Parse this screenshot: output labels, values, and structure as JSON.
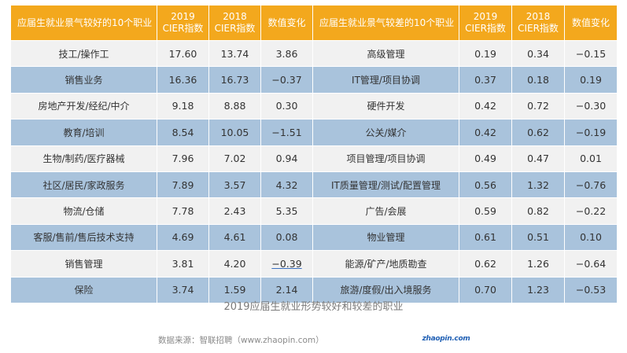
{
  "headers": {
    "good_title": "应届生就业景气较好的10个职业",
    "bad_title": "应届生就业景气较差的10个职业",
    "cier2019_year": "2019",
    "cier2019_label": "CIER指数",
    "cier2018_year": "2018",
    "cier2018_label": "CIER指数",
    "change": "数值变化"
  },
  "rows": [
    {
      "g_name": "技工/操作工",
      "g_2019": "17.60",
      "g_2018": "13.74",
      "g_chg": "3.86",
      "b_name": "高级管理",
      "b_2019": "0.19",
      "b_2018": "0.34",
      "b_chg": "−0.15"
    },
    {
      "g_name": "销售业务",
      "g_2019": "16.36",
      "g_2018": "16.73",
      "g_chg": "−0.37",
      "b_name": "IT管理/项目协调",
      "b_2019": "0.37",
      "b_2018": "0.18",
      "b_chg": "0.19"
    },
    {
      "g_name": "房地产开发/经纪/中介",
      "g_2019": "9.18",
      "g_2018": "8.88",
      "g_chg": "0.30",
      "b_name": "硬件开发",
      "b_2019": "0.42",
      "b_2018": "0.72",
      "b_chg": "−0.30"
    },
    {
      "g_name": "教育/培训",
      "g_2019": "8.54",
      "g_2018": "10.05",
      "g_chg": "−1.51",
      "b_name": "公关/媒介",
      "b_2019": "0.42",
      "b_2018": "0.62",
      "b_chg": "−0.19"
    },
    {
      "g_name": "生物/制药/医疗器械",
      "g_2019": "7.96",
      "g_2018": "7.02",
      "g_chg": "0.94",
      "b_name": "项目管理/项目协调",
      "b_2019": "0.49",
      "b_2018": "0.47",
      "b_chg": "0.01"
    },
    {
      "g_name": "社区/居民/家政服务",
      "g_2019": "7.89",
      "g_2018": "3.57",
      "g_chg": "4.32",
      "b_name": "IT质量管理/测试/配置管理",
      "b_2019": "0.56",
      "b_2018": "1.32",
      "b_chg": "−0.76"
    },
    {
      "g_name": "物流/仓储",
      "g_2019": "7.78",
      "g_2018": "2.43",
      "g_chg": "5.35",
      "b_name": "广告/会展",
      "b_2019": "0.59",
      "b_2018": "0.82",
      "b_chg": "−0.22"
    },
    {
      "g_name": "客服/售前/售后技术支持",
      "g_2019": "4.69",
      "g_2018": "4.61",
      "g_chg": "0.08",
      "b_name": "物业管理",
      "b_2019": "0.61",
      "b_2018": "0.51",
      "b_chg": "0.10"
    },
    {
      "g_name": "销售管理",
      "g_2019": "3.81",
      "g_2018": "4.20",
      "g_chg": "−0.39",
      "b_name": "能源/矿产/地质勘查",
      "b_2019": "0.62",
      "b_2018": "1.26",
      "b_chg": "−0.64"
    },
    {
      "g_name": "保险",
      "g_2019": "3.74",
      "g_2018": "1.59",
      "g_chg": "2.14",
      "b_name": "旅游/度假/出入境服务",
      "b_2019": "0.70",
      "b_2018": "1.23",
      "b_chg": "−0.53"
    }
  ],
  "caption": "2019应届生就业形势较好和较差的职业",
  "source": "数据来源：智联招聘（www.zhaopin.com）",
  "logo": {
    "text": "zhaopin.com",
    "color": "#1f5fb4"
  },
  "colors": {
    "header": "#f3a81d",
    "row_light": "#f1f1f1",
    "row_blue": "#a9c3dc"
  }
}
